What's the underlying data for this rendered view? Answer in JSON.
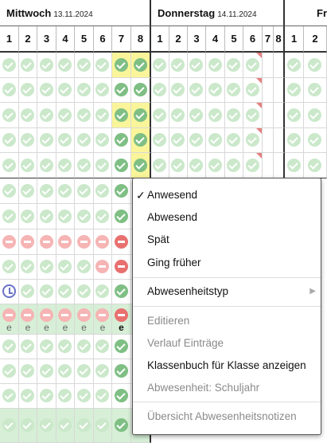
{
  "days": [
    {
      "name": "Mittwoch",
      "date": "13.11.2024"
    },
    {
      "name": "Donnerstag",
      "date": "14.11.2024"
    },
    {
      "name": "Fr",
      "date": ""
    }
  ],
  "periods": {
    "mittwoch": [
      "1",
      "2",
      "3",
      "4",
      "5",
      "6",
      "7",
      "8"
    ],
    "donnerstag": [
      "1",
      "2",
      "3",
      "4",
      "5",
      "6",
      "7",
      "8"
    ],
    "freitag": [
      "1",
      "2"
    ]
  },
  "status_icons": {
    "present": "check-circle-icon",
    "absent": "minus-circle-icon",
    "late": "clock-icon",
    "note": "corner-flag-icon"
  },
  "colors": {
    "present": "#cbe8cb",
    "present_strong": "#7fbf84",
    "absent": "#f6b4b4",
    "absent_strong": "#e8706f",
    "highlight_yellow": "#faf59a",
    "highlight_green": "#d6efd6",
    "flag": "#e58080"
  },
  "rows": [
    {
      "mittwoch": "ok ok ok ok ok ok ok ok",
      "donnerstag": "ok ok ok ok ok ok - -",
      "freitag": "ok ok"
    },
    {
      "mittwoch": "ok ok ok ok ok ok ok ok",
      "donnerstag": "ok ok ok ok ok ok - -",
      "freitag": "ok ok"
    },
    {
      "mittwoch": "ok ok ok ok ok ok ok ok",
      "donnerstag": "ok ok ok ok ok ok - -",
      "freitag": "ok ok"
    },
    {
      "mittwoch": "ok ok ok ok ok ok ok ok",
      "donnerstag": "ok ok ok ok ok ok - -",
      "freitag": "ok ok"
    },
    {
      "mittwoch": "ok ok ok ok ok ok ok ok",
      "donnerstag": "ok ok ok ok ok ok - -",
      "freitag": "ok ok"
    },
    {
      "mittwoch": "ok ok ok ok ok ok ok",
      "donnerstag": "",
      "freitag": ""
    },
    {
      "mittwoch": "ok ok ok ok ok ok ok",
      "donnerstag": "",
      "freitag": ""
    },
    {
      "mittwoch": "abs abs abs abs abs abs abs",
      "donnerstag": "",
      "freitag": ""
    },
    {
      "mittwoch": "ok ok ok ok ok abs abs",
      "donnerstag": "",
      "freitag": ""
    },
    {
      "mittwoch": "late ok ok ok ok ok ok",
      "donnerstag": "",
      "freitag": ""
    },
    {
      "mittwoch": "abs abs abs abs abs abs abs",
      "donnerstag": "",
      "freitag": ""
    },
    {
      "mittwoch": "ok ok ok ok ok ok ok",
      "donnerstag": "",
      "freitag": ""
    },
    {
      "mittwoch": "ok ok ok ok ok ok ok",
      "donnerstag": "",
      "freitag": ""
    },
    {
      "mittwoch": "ok ok ok ok ok ok ok",
      "donnerstag": "",
      "freitag": ""
    },
    {
      "mittwoch": "ok ok ok ok ok ok ok",
      "donnerstag": "",
      "freitag": ""
    }
  ],
  "excused_marks": [
    "e",
    "e",
    "e",
    "e",
    "e",
    "e",
    "e"
  ],
  "context_menu": {
    "items": [
      {
        "label": "Anwesend",
        "checked": true,
        "disabled": false,
        "name": "menu-item-anwesend"
      },
      {
        "label": "Abwesend",
        "checked": false,
        "disabled": false,
        "name": "menu-item-abwesend"
      },
      {
        "label": "Spät",
        "checked": false,
        "disabled": false,
        "name": "menu-item-spaet"
      },
      {
        "label": "Ging früher",
        "checked": false,
        "disabled": false,
        "name": "menu-item-ging-frueher"
      },
      {
        "label": "Abwesenheitstyp",
        "checked": false,
        "disabled": false,
        "submenu": true,
        "name": "menu-item-abwesenheitstyp"
      },
      {
        "label": "Editieren",
        "checked": false,
        "disabled": true,
        "name": "menu-item-editieren"
      },
      {
        "label": "Verlauf Einträge",
        "checked": false,
        "disabled": true,
        "name": "menu-item-verlauf-eintraege"
      },
      {
        "label": "Klassenbuch für Klasse anzeigen",
        "checked": false,
        "disabled": false,
        "name": "menu-item-klassenbuch-anzeigen"
      },
      {
        "label": "Abwesenheit: Schuljahr",
        "checked": false,
        "disabled": true,
        "name": "menu-item-abwesenheit-schuljahr"
      },
      {
        "label": "Übersicht Abwesenheitsnotizen",
        "checked": false,
        "disabled": true,
        "name": "menu-item-uebersicht-abwesenheitsnotizen"
      }
    ],
    "check_glyph": "✓",
    "submenu_glyph": "▶"
  }
}
